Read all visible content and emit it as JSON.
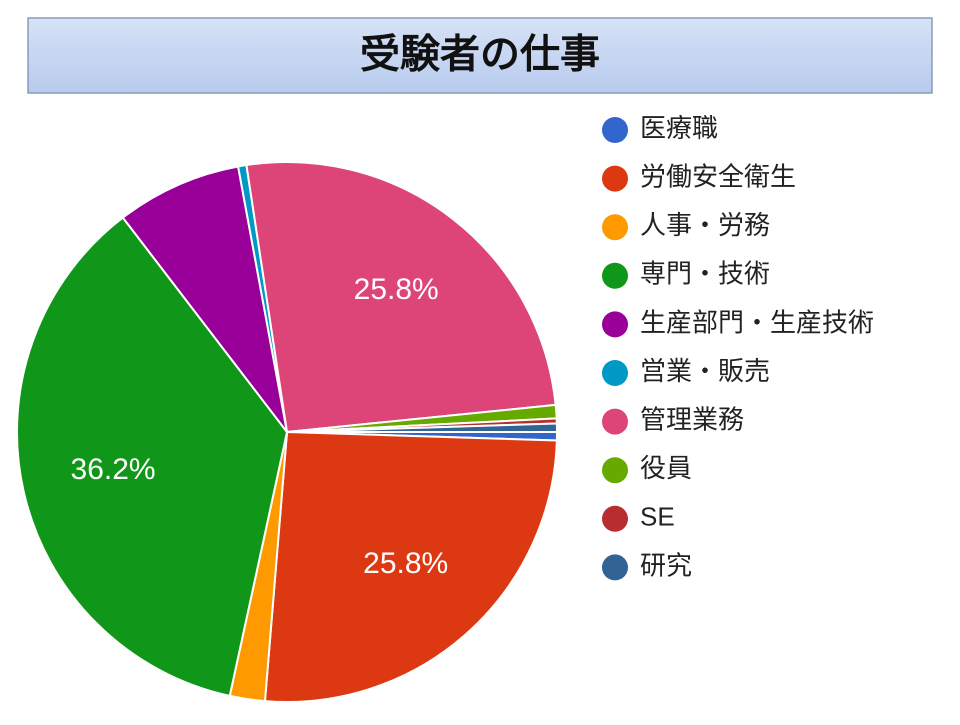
{
  "chart_data": {
    "type": "pie",
    "title": "受験者の仕事",
    "categories": [
      "医療職",
      "労働安全衛生",
      "人事・労務",
      "専門・技術",
      "生産部門・生産技術",
      "営業・販売",
      "管理業務",
      "役員",
      "SE",
      "研究"
    ],
    "values": [
      0.5,
      25.8,
      2.1,
      36.2,
      7.5,
      0.5,
      25.8,
      0.8,
      0.3,
      0.5
    ],
    "value_labels": [
      null,
      "25.8%",
      null,
      "36.2%",
      null,
      null,
      "25.8%",
      null,
      null,
      null
    ],
    "colors": [
      "#3366cc",
      "#dc3912",
      "#ff9900",
      "#109618",
      "#990099",
      "#0099c6",
      "#dd4477",
      "#66aa00",
      "#b82e2e",
      "#316395"
    ],
    "legend": "right"
  }
}
